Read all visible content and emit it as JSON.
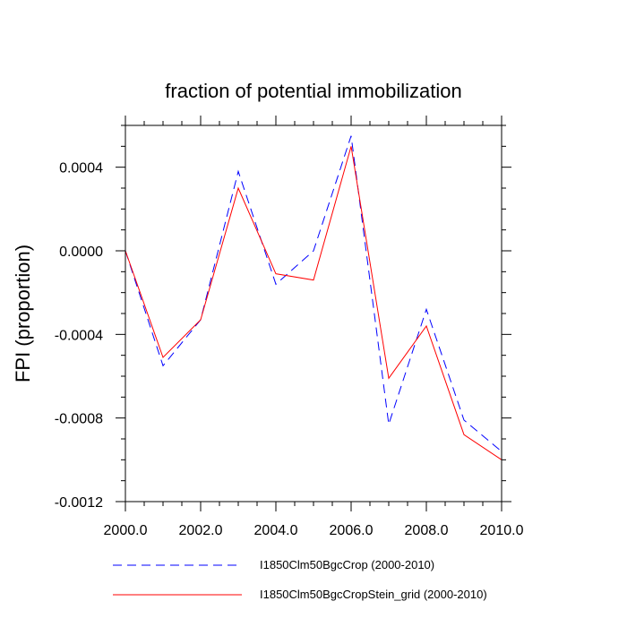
{
  "chart_data": {
    "type": "line",
    "title": "fraction of potential immobilization",
    "xlabel": "",
    "ylabel": "FPI  (proportion)",
    "xlim": [
      2000.0,
      2010.0
    ],
    "ylim": [
      -0.0012,
      0.0006
    ],
    "x": [
      2000,
      2001,
      2002,
      2003,
      2004,
      2005,
      2006,
      2007,
      2008,
      2009,
      2010
    ],
    "xticks": [
      2000,
      2002,
      2004,
      2006,
      2008,
      2010
    ],
    "xtick_labels": [
      "2000.0",
      "2002.0",
      "2004.0",
      "2006.0",
      "2008.0",
      "2010.0"
    ],
    "yticks": [
      0.0004,
      0.0,
      -0.0004,
      -0.0008,
      -0.0012
    ],
    "ytick_labels": [
      "0.0004",
      "0.0000",
      "-0.0004",
      "-0.0008",
      "-0.0012"
    ],
    "grid": false,
    "legend_position": "bottom",
    "series": [
      {
        "name": "I1850Clm50BgcCrop (2000-2010)",
        "color": "#0000ff",
        "style": "dashed",
        "values": [
          0.0,
          -0.00055,
          -0.00033,
          0.00038,
          -0.00016,
          0.0,
          0.00055,
          -0.00083,
          -0.00028,
          -0.00081,
          -0.00096
        ]
      },
      {
        "name": "I1850Clm50BgcCropStein_grid (2000-2010)",
        "color": "#ff0000",
        "style": "solid",
        "values": [
          0.0,
          -0.00051,
          -0.00033,
          0.0003,
          -0.00011,
          -0.00014,
          0.0005,
          -0.00061,
          -0.00036,
          -0.00088,
          -0.001
        ]
      }
    ]
  }
}
